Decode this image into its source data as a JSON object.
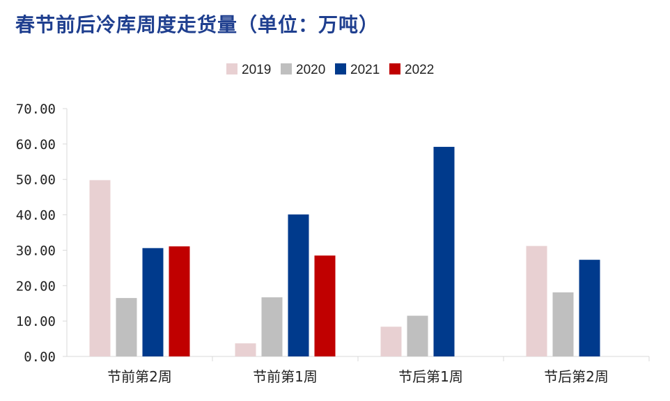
{
  "chart_data": {
    "type": "bar",
    "title": "春节前后冷库周度走货量（单位：万吨）",
    "categories": [
      "节前第2周",
      "节前第1周",
      "节后第1周",
      "节后第2周"
    ],
    "series": [
      {
        "name": "2019",
        "color": "#e8d0d2",
        "values": [
          49.8,
          3.7,
          8.4,
          31.2
        ]
      },
      {
        "name": "2020",
        "color": "#bfbfbf",
        "values": [
          16.5,
          16.7,
          11.5,
          18.1
        ]
      },
      {
        "name": "2021",
        "color": "#003a8c",
        "values": [
          30.6,
          40.1,
          59.2,
          27.3
        ]
      },
      {
        "name": "2022",
        "color": "#c00000",
        "values": [
          31.1,
          28.5,
          null,
          null
        ]
      }
    ],
    "ylim": [
      0,
      70
    ],
    "yticks": [
      "0.00",
      "10.00",
      "20.00",
      "30.00",
      "40.00",
      "50.00",
      "60.00",
      "70.00"
    ],
    "legend_position": "top-center",
    "grid": false
  }
}
